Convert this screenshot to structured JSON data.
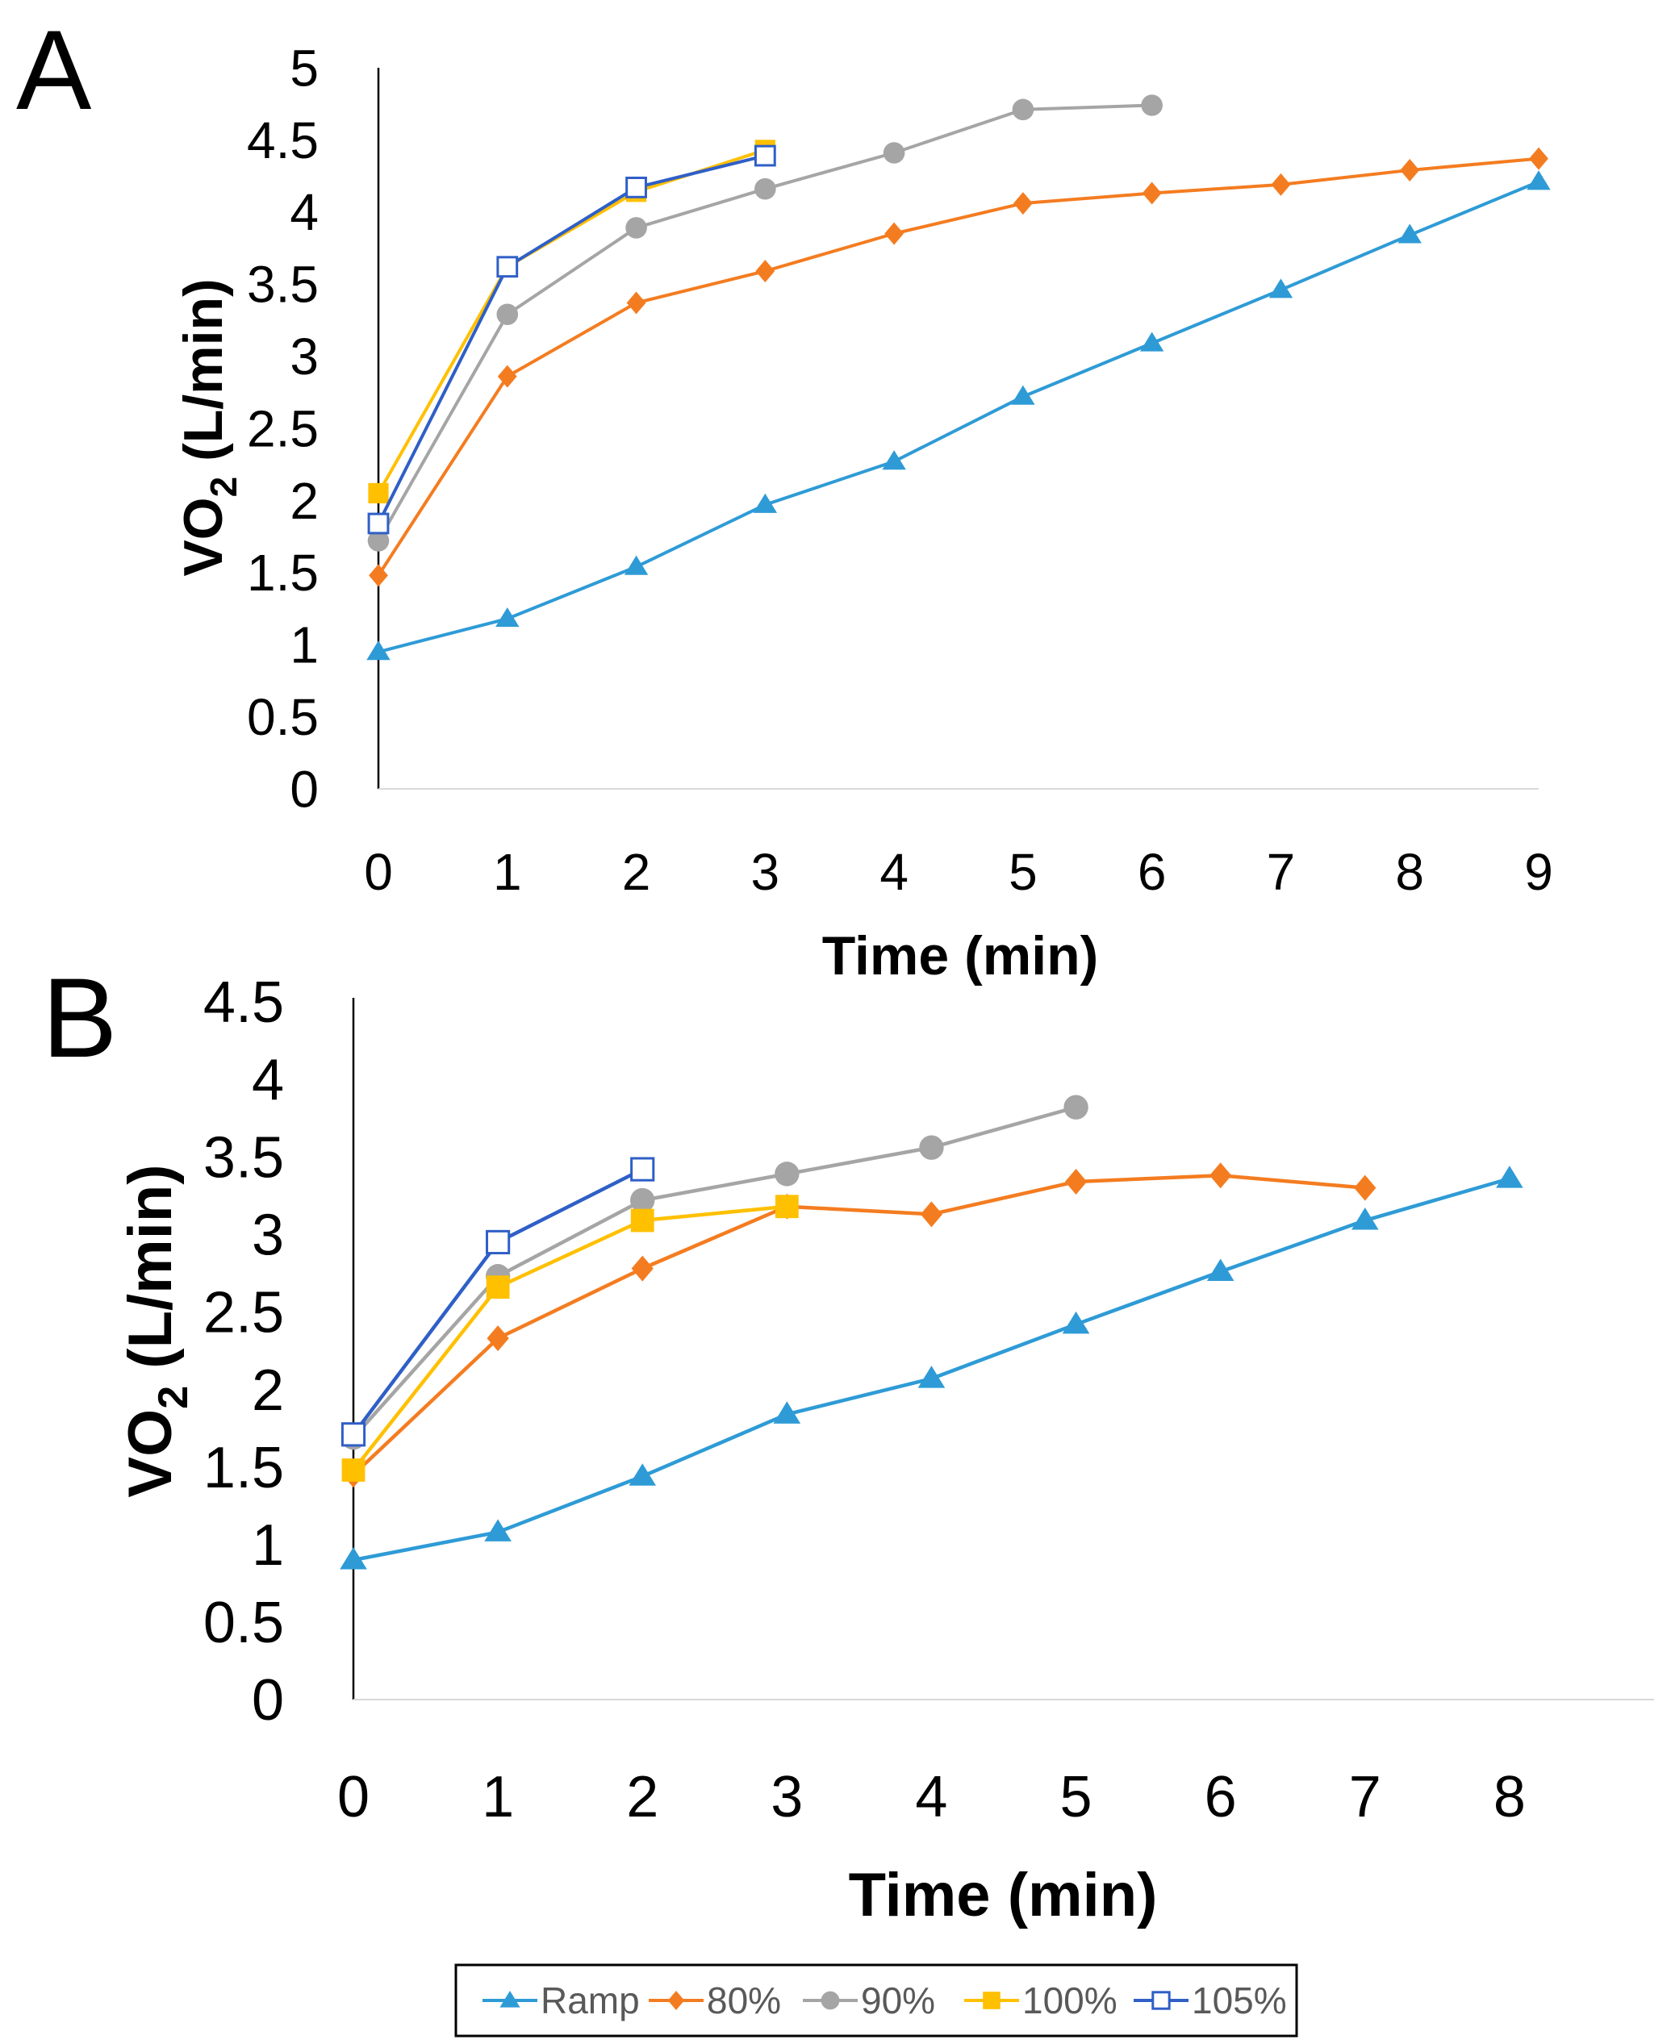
{
  "figure": {
    "legend": [
      {
        "series": "Ramp",
        "label": "Ramp"
      },
      {
        "series": "80%",
        "label": "80%"
      },
      {
        "series": "90%",
        "label": "90%"
      },
      {
        "series": "100%",
        "label": "100%"
      },
      {
        "series": "105%",
        "label": "105%"
      }
    ]
  },
  "series_styles": {
    "Ramp": {
      "color": "#2E9BD6",
      "marker": "triangle"
    },
    "80%": {
      "color": "#F47C20",
      "marker": "diamond"
    },
    "90%": {
      "color": "#A5A5A5",
      "marker": "circle"
    },
    "100%": {
      "color": "#FFC000",
      "marker": "square"
    },
    "105%": {
      "color": "#2F5FC7",
      "marker": "open-square"
    }
  },
  "chart_data": [
    {
      "panel": "A",
      "type": "line",
      "title": "",
      "xlabel": "Time (min)",
      "ylabel": "VO2 (L/min)",
      "ylabel_main": "VO",
      "ylabel_sub": "2",
      "ylabel_rest": " (L/min)",
      "xlim": [
        0,
        9
      ],
      "ylim": [
        0,
        5
      ],
      "xticks": [
        "0",
        "1",
        "2",
        "3",
        "4",
        "5",
        "6",
        "7",
        "8",
        "9"
      ],
      "yticks": [
        "0",
        "0.5",
        "1",
        "1.5",
        "2",
        "2.5",
        "3",
        "3.5",
        "4",
        "4.5",
        "5"
      ],
      "series": [
        {
          "name": "Ramp",
          "x": [
            0,
            1,
            2,
            3,
            4,
            5,
            6,
            7,
            8,
            9
          ],
          "values": [
            0.95,
            1.18,
            1.54,
            1.97,
            2.27,
            2.72,
            3.09,
            3.46,
            3.84,
            4.21
          ]
        },
        {
          "name": "80%",
          "x": [
            0,
            1,
            2,
            3,
            4,
            5,
            6,
            7,
            8,
            9
          ],
          "values": [
            1.48,
            2.86,
            3.37,
            3.59,
            3.85,
            4.06,
            4.13,
            4.19,
            4.29,
            4.37
          ]
        },
        {
          "name": "90%",
          "x": [
            0,
            1,
            2,
            3,
            4,
            5,
            6
          ],
          "values": [
            1.72,
            3.29,
            3.89,
            4.16,
            4.41,
            4.71,
            4.74
          ]
        },
        {
          "name": "100%",
          "x": [
            0,
            1,
            2,
            3
          ],
          "values": [
            2.05,
            3.62,
            4.14,
            4.43
          ]
        },
        {
          "name": "105%",
          "x": [
            0,
            1,
            2,
            3
          ],
          "values": [
            1.84,
            3.62,
            4.17,
            4.39
          ]
        }
      ]
    },
    {
      "panel": "B",
      "type": "line",
      "title": "",
      "xlabel": "Time (min)",
      "ylabel": "VO2 (L/min)",
      "ylabel_main": "VO",
      "ylabel_sub": "2",
      "ylabel_rest": " (L/min)",
      "xlim": [
        0,
        9
      ],
      "ylim": [
        0,
        4.5
      ],
      "xticks": [
        "0",
        "1",
        "2",
        "3",
        "4",
        "5",
        "6",
        "7",
        "8"
      ],
      "yticks": [
        "0",
        "0.5",
        "1",
        "1.5",
        "2",
        "2.5",
        "3",
        "3.5",
        "4",
        "4.5"
      ],
      "series": [
        {
          "name": "Ramp",
          "x": [
            0,
            1,
            2,
            3,
            4,
            5,
            6,
            7,
            8
          ],
          "values": [
            0.9,
            1.08,
            1.44,
            1.84,
            2.07,
            2.42,
            2.76,
            3.09,
            3.36
          ]
        },
        {
          "name": "80%",
          "x": [
            0,
            1,
            2,
            3,
            4,
            5,
            6,
            7
          ],
          "values": [
            1.45,
            2.33,
            2.78,
            3.18,
            3.13,
            3.34,
            3.38,
            3.3
          ]
        },
        {
          "name": "90%",
          "x": [
            0,
            1,
            2,
            3,
            4,
            5
          ],
          "values": [
            1.69,
            2.73,
            3.22,
            3.39,
            3.56,
            3.82
          ]
        },
        {
          "name": "100%",
          "x": [
            0,
            1,
            2,
            3
          ],
          "values": [
            1.48,
            2.66,
            3.09,
            3.18
          ]
        },
        {
          "name": "105%",
          "x": [
            0,
            1,
            2
          ],
          "values": [
            1.71,
            2.95,
            3.42
          ]
        }
      ]
    }
  ]
}
